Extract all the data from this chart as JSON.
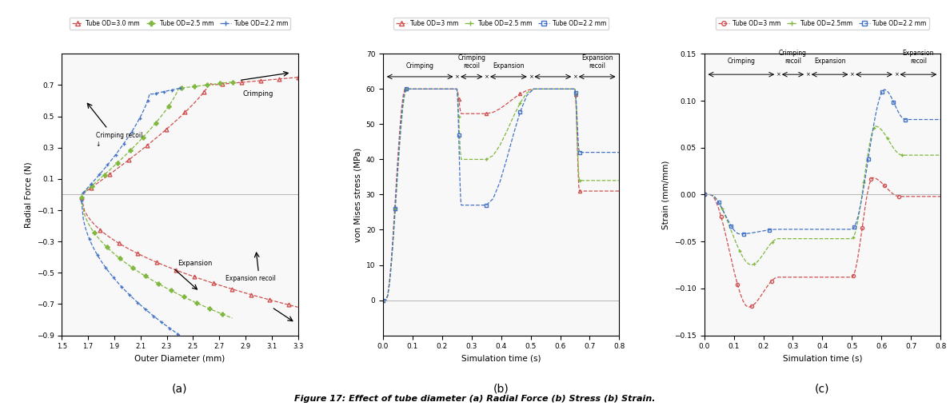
{
  "fig_width": 11.88,
  "fig_height": 5.18,
  "background_color": "#ffffff",
  "caption": "Figure 17: Effect of tube diameter (a) Radial Force (b) Stress (b) Strain.",
  "panel_a": {
    "xlabel": "Outer Diameter (mm)",
    "ylabel": "Radial Force (N)",
    "xlim": [
      1.5,
      3.3
    ],
    "ylim": [
      -0.9,
      0.9
    ],
    "xticks": [
      1.5,
      1.7,
      1.9,
      2.1,
      2.3,
      2.5,
      2.7,
      2.9,
      3.1,
      3.3
    ],
    "yticks": [
      -0.9,
      -0.7,
      -0.5,
      -0.3,
      -0.1,
      0.1,
      0.3,
      0.5,
      0.7
    ],
    "legend_labels": [
      "Tube OD=3.0 mm",
      "Tube OD=2.5 mm",
      "Tube OD=2.2 mm"
    ],
    "colors": [
      "#d05050",
      "#80b840",
      "#4472c4"
    ],
    "label_a": "(a)"
  },
  "panel_b": {
    "xlabel": "Simulation time (s)",
    "ylabel": "von Mises stress (MPa)",
    "xlim": [
      0,
      0.8
    ],
    "ylim": [
      -10,
      70
    ],
    "xticks": [
      0,
      0.1,
      0.2,
      0.3,
      0.4,
      0.5,
      0.6,
      0.7,
      0.8
    ],
    "yticks": [
      0,
      10,
      20,
      30,
      40,
      50,
      60,
      70
    ],
    "legend_labels": [
      "Tube OD=3 mm",
      "Tube OD=2.5 mm",
      "Tube OD=2.2 mm"
    ],
    "colors": [
      "#d05050",
      "#80b840",
      "#4472c4"
    ],
    "phase_labels": [
      "Crimping",
      "Crimping\nrecoil",
      "Expansion",
      "Expansion\nrecoil"
    ],
    "phase_boundaries": [
      0.0,
      0.25,
      0.35,
      0.5,
      0.65,
      0.8
    ],
    "label_b": "(b)"
  },
  "panel_c": {
    "xlabel": "Simulation time (s)",
    "ylabel": "Strain (mm/mm)",
    "xlim": [
      0,
      0.8
    ],
    "ylim": [
      -0.15,
      0.15
    ],
    "xticks": [
      0,
      0.1,
      0.2,
      0.3,
      0.4,
      0.5,
      0.6,
      0.7,
      0.8
    ],
    "yticks": [
      -0.15,
      -0.1,
      -0.05,
      0,
      0.05,
      0.1,
      0.15
    ],
    "legend_labels": [
      "Tube OD=3 mm",
      "Tube OD=2.5mm",
      "Tube OD=2.2 mm"
    ],
    "colors": [
      "#d05050",
      "#80b840",
      "#4472c4"
    ],
    "phase_labels": [
      "Crimping",
      "Crimping\nrecoil",
      "Expansion",
      "Expansion\nrecoil"
    ],
    "phase_boundaries": [
      0.0,
      0.25,
      0.35,
      0.5,
      0.65,
      0.8
    ],
    "label_c": "(c)"
  }
}
